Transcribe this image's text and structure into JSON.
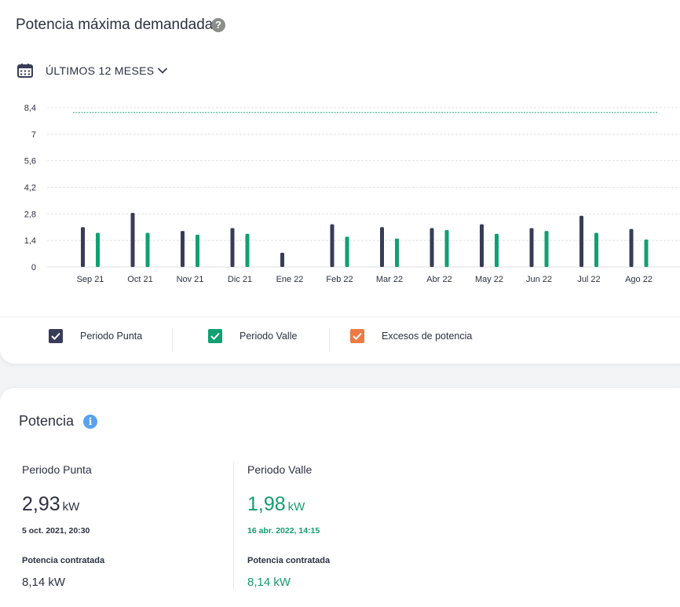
{
  "header": {
    "title": "Potencia máxima demandada",
    "help_glyph": "?",
    "period_label": "ÚLTIMOS 12 MESES"
  },
  "colors": {
    "punta": "#393c58",
    "valle": "#10a072",
    "excesos": "#ee7a43",
    "contracted_line": "#27a37a"
  },
  "chart_data": {
    "type": "bar",
    "categories": [
      "Sep 21",
      "Oct 21",
      "Nov 21",
      "Dic 21",
      "Ene 22",
      "Feb 22",
      "Mar 22",
      "Abr 22",
      "May 22",
      "Jun 22",
      "Jul 22",
      "Ago 22"
    ],
    "series": [
      {
        "name": "Periodo Punta",
        "values": [
          2.1,
          2.85,
          1.9,
          2.05,
          0.75,
          2.25,
          2.1,
          2.05,
          2.25,
          2.05,
          2.7,
          2.0
        ]
      },
      {
        "name": "Periodo Valle",
        "values": [
          1.8,
          1.8,
          1.7,
          1.75,
          null,
          1.6,
          1.5,
          1.95,
          1.75,
          1.9,
          1.8,
          1.45
        ]
      }
    ],
    "ylim": [
      0,
      8.4
    ],
    "yticks": [
      "0",
      "1,4",
      "2,8",
      "4,2",
      "5,6",
      "7",
      "8,4"
    ],
    "ytick_values": [
      0,
      1.4,
      2.8,
      4.2,
      5.6,
      7,
      8.4
    ],
    "reference_line": 8.14,
    "grid": true
  },
  "legend": {
    "items": [
      {
        "label": "Periodo Punta"
      },
      {
        "label": "Periodo Valle"
      },
      {
        "label": "Excesos de potencia"
      }
    ]
  },
  "potencia": {
    "title": "Potencia",
    "info_glyph": "i",
    "punta": {
      "label": "Periodo Punta",
      "value": "2,93",
      "unit": "kW",
      "date": "5 oct. 2021, 20:30",
      "contracted_label": "Potencia contratada",
      "contracted_value": "8,14 kW"
    },
    "valle": {
      "label": "Periodo Valle",
      "value": "1,98",
      "unit": "kW",
      "date": "16 abr. 2022, 14:15",
      "contracted_label": "Potencia contratada",
      "contracted_value": "8,14 kW"
    }
  }
}
